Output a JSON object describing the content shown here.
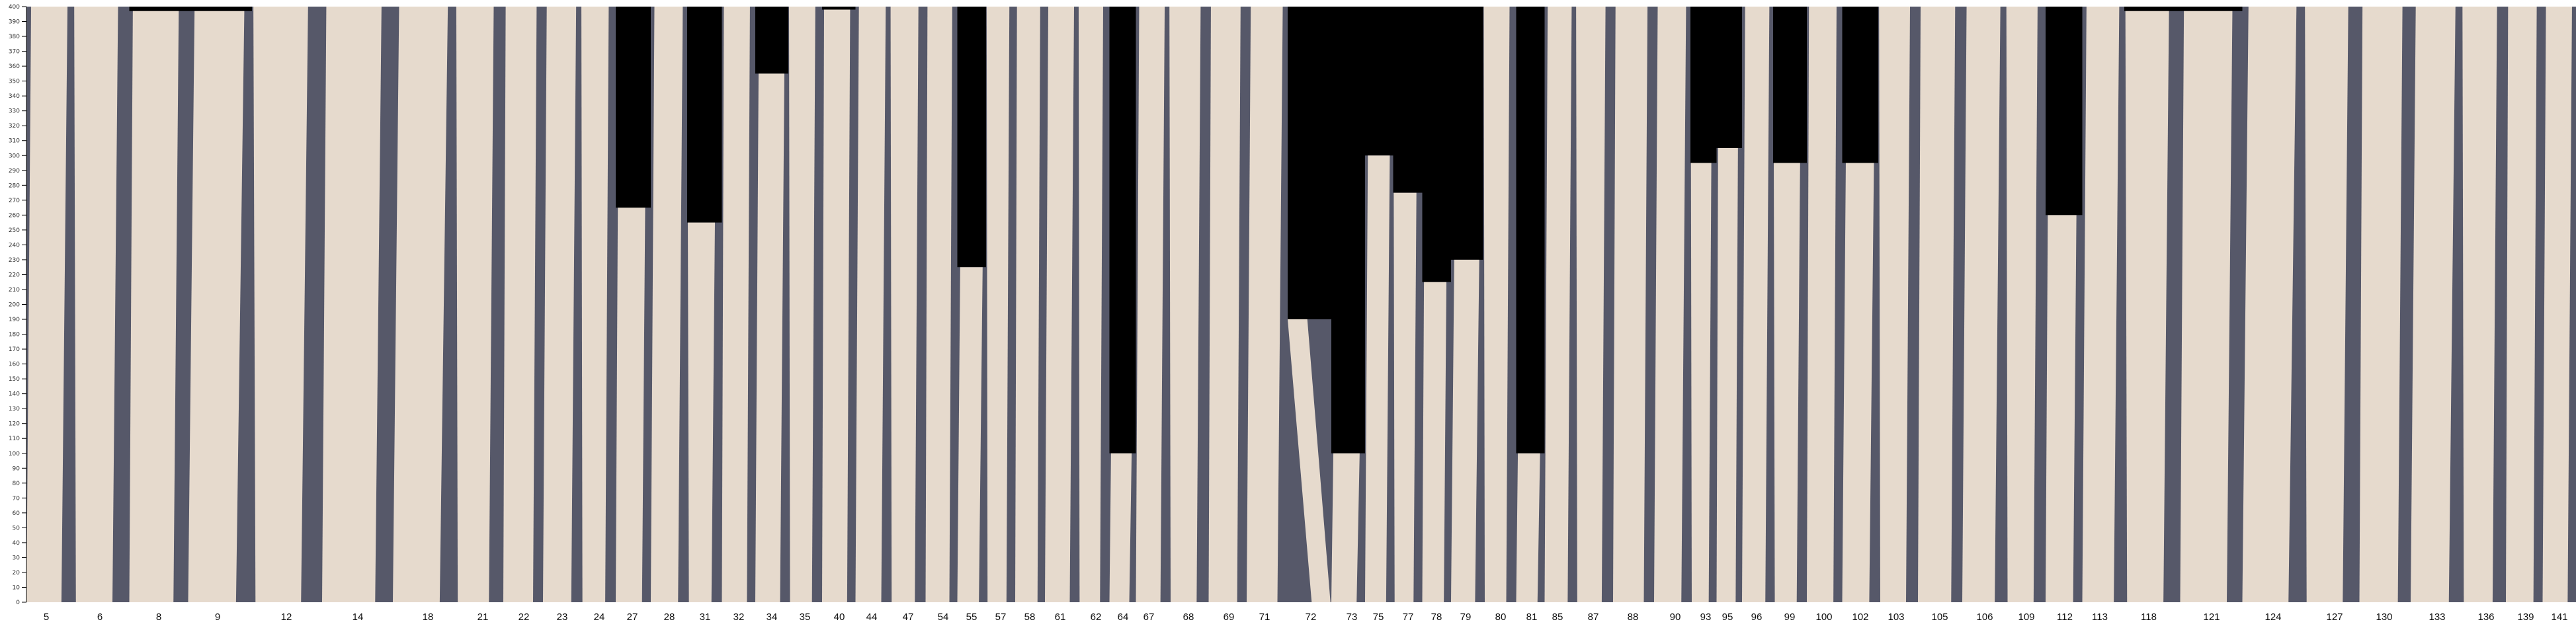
{
  "chart_data": {
    "type": "bar",
    "ylim": [
      0,
      400
    ],
    "yticks": [
      0,
      10,
      20,
      30,
      40,
      50,
      60,
      70,
      80,
      90,
      100,
      110,
      120,
      130,
      140,
      150,
      160,
      170,
      180,
      190,
      200,
      210,
      220,
      230,
      240,
      250,
      260,
      270,
      280,
      290,
      300,
      310,
      320,
      330,
      340,
      350,
      360,
      370,
      380,
      390,
      400
    ],
    "categories": [
      "5",
      "6",
      "8",
      "9",
      "12",
      "14",
      "18",
      "21",
      "22",
      "23",
      "24",
      "27",
      "28",
      "31",
      "32",
      "34",
      "35",
      "40",
      "44",
      "47",
      "54",
      "55",
      "57",
      "58",
      "61",
      "62",
      "64",
      "67",
      "68",
      "69",
      "71",
      "72",
      "73",
      "75",
      "77",
      "78",
      "79",
      "80",
      "81",
      "85",
      "87",
      "88",
      "90",
      "93",
      "95",
      "96",
      "99",
      "100",
      "102",
      "103",
      "105",
      "106",
      "109",
      "112",
      "113",
      "118",
      "121",
      "124",
      "127",
      "130",
      "133",
      "136",
      "139",
      "141"
    ],
    "values": [
      400,
      400,
      397,
      397,
      400,
      400,
      400,
      400,
      400,
      400,
      400,
      265,
      400,
      255,
      400,
      355,
      400,
      398,
      400,
      400,
      400,
      225,
      400,
      400,
      400,
      400,
      100,
      400,
      400,
      400,
      400,
      190,
      100,
      300,
      275,
      215,
      230,
      400,
      100,
      400,
      400,
      400,
      400,
      295,
      305,
      400,
      295,
      400,
      295,
      400,
      400,
      400,
      400,
      260,
      400,
      397,
      397,
      400,
      400,
      400,
      400,
      400,
      400,
      400
    ],
    "grid": false,
    "colors": {
      "board": "#e6dacd",
      "shadow": "#565869",
      "empty": "#000000"
    }
  }
}
